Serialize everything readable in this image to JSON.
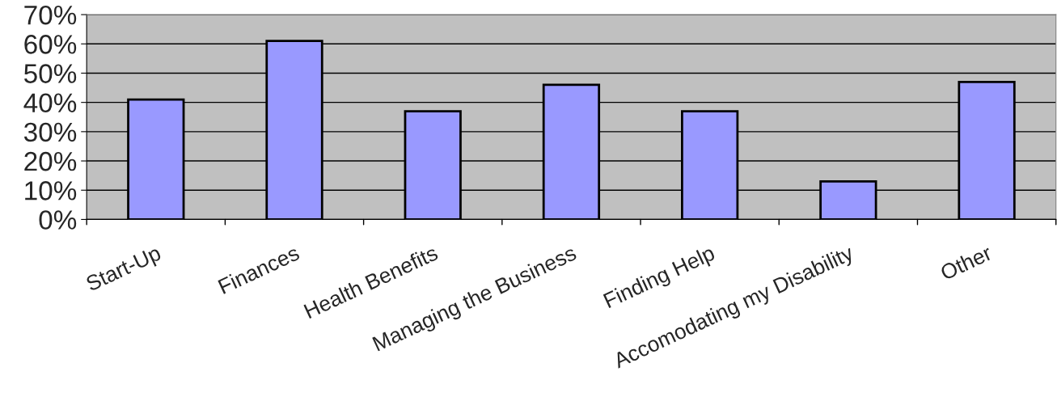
{
  "chart_data": {
    "type": "bar",
    "categories": [
      "Start-Up",
      "Finances",
      "Health Benefits",
      "Managing the Business",
      "Finding Help",
      "Accomodating my Disability",
      "Other"
    ],
    "values": [
      41,
      61,
      37,
      46,
      37,
      13,
      47
    ],
    "color": "#9999ff",
    "ylim": [
      0,
      70
    ],
    "yticks": [
      {
        "value": 0,
        "label": "0%"
      },
      {
        "value": 10,
        "label": "10%"
      },
      {
        "value": 20,
        "label": "20%"
      },
      {
        "value": 30,
        "label": "30%"
      },
      {
        "value": 40,
        "label": "40%"
      },
      {
        "value": 50,
        "label": "50%"
      },
      {
        "value": 60,
        "label": "60%"
      },
      {
        "value": 70,
        "label": "70%"
      }
    ],
    "grid": "y",
    "legend": false
  }
}
